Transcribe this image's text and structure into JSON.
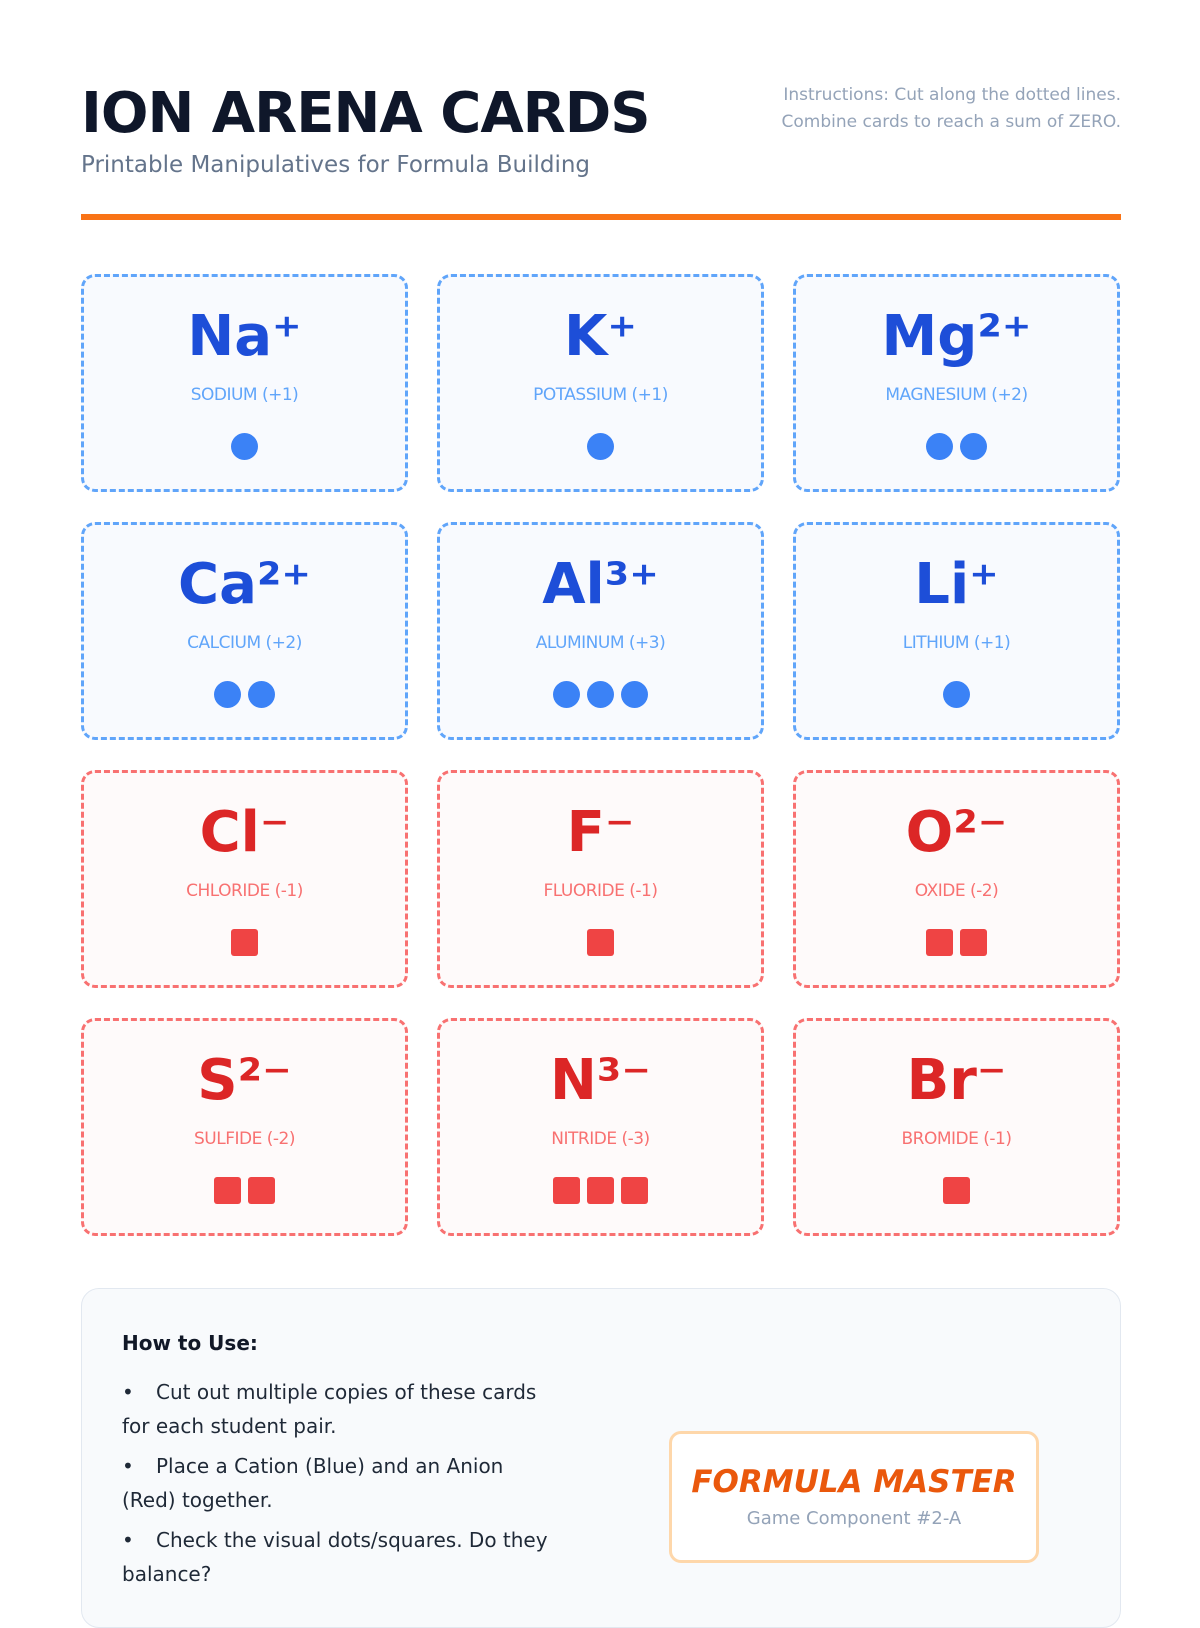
{
  "header": {
    "title": "ION ARENA CARDS",
    "subtitle": "Printable Manipulatives for Formula Building",
    "instructions_line1": "Instructions: Cut along the dotted lines.",
    "instructions_line2": "Combine cards to reach a sum of ZERO."
  },
  "colors": {
    "accent": "#f97316",
    "cation": "#3b82f6",
    "anion": "#ef4444"
  },
  "cards": [
    {
      "symbol": "Na⁺",
      "name": "SODIUM (+1)",
      "type": "cation",
      "count": 1
    },
    {
      "symbol": "K⁺",
      "name": "POTASSIUM (+1)",
      "type": "cation",
      "count": 1
    },
    {
      "symbol": "Mg²⁺",
      "name": "MAGNESIUM (+2)",
      "type": "cation",
      "count": 2
    },
    {
      "symbol": "Ca²⁺",
      "name": "CALCIUM (+2)",
      "type": "cation",
      "count": 2
    },
    {
      "symbol": "Al³⁺",
      "name": "ALUMINUM (+3)",
      "type": "cation",
      "count": 3
    },
    {
      "symbol": "Li⁺",
      "name": "LITHIUM (+1)",
      "type": "cation",
      "count": 1
    },
    {
      "symbol": "Cl⁻",
      "name": "CHLORIDE (-1)",
      "type": "anion",
      "count": 1
    },
    {
      "symbol": "F⁻",
      "name": "FLUORIDE (-1)",
      "type": "anion",
      "count": 1
    },
    {
      "symbol": "O²⁻",
      "name": "OXIDE (-2)",
      "type": "anion",
      "count": 2
    },
    {
      "symbol": "S²⁻",
      "name": "SULFIDE (-2)",
      "type": "anion",
      "count": 2
    },
    {
      "symbol": "N³⁻",
      "name": "NITRIDE (-3)",
      "type": "anion",
      "count": 3
    },
    {
      "symbol": "Br⁻",
      "name": "BROMIDE (-1)",
      "type": "anion",
      "count": 1
    }
  ],
  "info": {
    "heading": "How to Use:",
    "bullet": "•",
    "items": [
      "Cut out multiple copies of these cards for each student pair.",
      "Place a Cation (Blue) and an Anion (Red) together.",
      "Check the visual dots/squares. Do they balance?"
    ]
  },
  "badge": {
    "title": "FORMULA MASTER",
    "subtitle": "Game Component #2-A"
  }
}
